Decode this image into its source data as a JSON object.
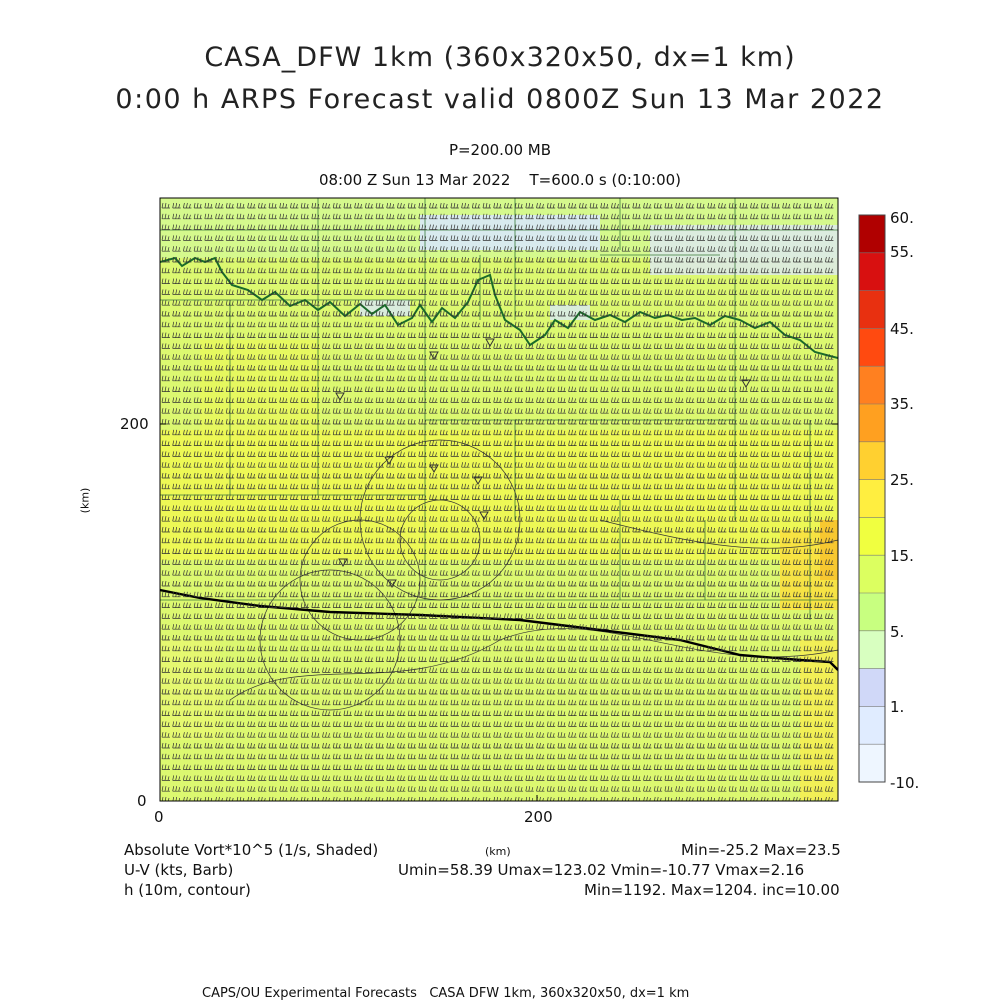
{
  "header": {
    "title_line1": "CASA_DFW 1km (360x320x50, dx=1 km)",
    "title_line2": "0:00 h ARPS Forecast valid 0800Z Sun 13 Mar 2022",
    "pressure_level": "P=200.00 MB",
    "time_line": "08:00 Z Sun 13 Mar 2022    T=600.0 s (0:10:00)"
  },
  "axes": {
    "x_ticks": [
      "0",
      "200"
    ],
    "y_ticks": [
      "0",
      "200"
    ],
    "x_unit": "(km)",
    "y_unit": "(km)"
  },
  "colorbar": {
    "labels": [
      "60.",
      "55.",
      "45.",
      "35.",
      "25.",
      "15.",
      "5.",
      "1.",
      "-10."
    ],
    "colors": [
      "#b00000",
      "#d81010",
      "#e83010",
      "#ff4a10",
      "#ff8020",
      "#ffa020",
      "#ffd030",
      "#ffee40",
      "#f0ff40",
      "#dcff60",
      "#c8ff80",
      "#d8ffc0",
      "#d0d8f8",
      "#e0ecff",
      "#eef6ff"
    ]
  },
  "legend": {
    "field1": "Absolute Vort*10^5 (1/s, Shaded)",
    "field1_stats": "Min=-25.2 Max=23.5",
    "field2": "U-V (kts, Barb)",
    "field2_stats": "Umin=58.39 Umax=123.02 Vmin=-10.77 Vmax=2.16",
    "field3": "h (10m, contour)",
    "field3_stats": "Min=1192. Max=1204. inc=10.00"
  },
  "footer": "CAPS/OU Experimental Forecasts   CASA DFW 1km, 360x320x50, dx=1 km",
  "style": {
    "field_base": "#d8f870",
    "field_yellow": "#f0f850",
    "field_light": "#e8fcc0",
    "field_blue": "#d8e8f8",
    "border_green": "#1a6b2a",
    "barb_color": "#333333"
  }
}
